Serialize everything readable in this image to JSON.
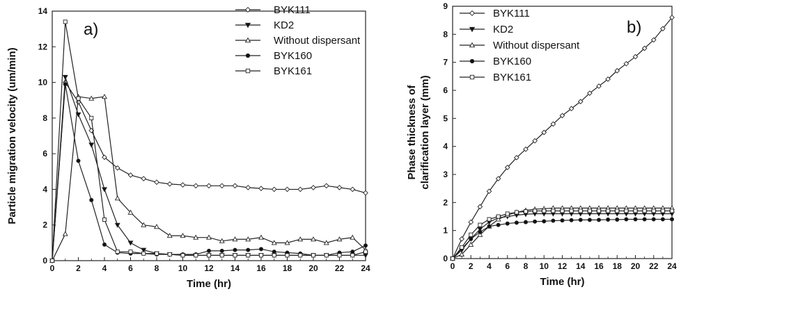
{
  "chart_data": [
    {
      "type": "line",
      "panel_label": "a)",
      "xlabel": "Time (hr)",
      "ylabel": "Particle migration velocity (um/min)",
      "xlim": [
        0,
        24
      ],
      "ylim": [
        0,
        14
      ],
      "xticks": [
        0,
        2,
        4,
        6,
        8,
        10,
        12,
        14,
        16,
        18,
        20,
        22,
        24
      ],
      "yticks": [
        0,
        2,
        4,
        6,
        8,
        10,
        12,
        14
      ],
      "legend_position": "top-right",
      "x": [
        0,
        1,
        2,
        3,
        4,
        5,
        6,
        7,
        8,
        9,
        10,
        11,
        12,
        13,
        14,
        15,
        16,
        17,
        18,
        19,
        20,
        21,
        22,
        23,
        24
      ],
      "series": [
        {
          "name": "BYK111",
          "marker": "diamond-open",
          "values": [
            0,
            10.0,
            8.9,
            7.3,
            5.8,
            5.2,
            4.8,
            4.6,
            4.4,
            4.3,
            4.25,
            4.2,
            4.2,
            4.2,
            4.2,
            4.1,
            4.05,
            4.0,
            4.0,
            4.0,
            4.1,
            4.2,
            4.1,
            4.0,
            3.8
          ]
        },
        {
          "name": "KD2",
          "marker": "triangle-down-filled",
          "values": [
            0,
            10.3,
            8.2,
            6.5,
            4.0,
            2.0,
            1.0,
            0.6,
            0.4,
            0.35,
            0.3,
            0.3,
            0.3,
            0.3,
            0.3,
            0.3,
            0.3,
            0.3,
            0.3,
            0.3,
            0.3,
            0.3,
            0.3,
            0.3,
            0.3
          ]
        },
        {
          "name": "Without dispersant",
          "marker": "triangle-up-open",
          "values": [
            0,
            1.5,
            9.2,
            9.1,
            9.2,
            3.5,
            2.7,
            2.0,
            1.9,
            1.4,
            1.4,
            1.3,
            1.3,
            1.1,
            1.2,
            1.2,
            1.3,
            1.0,
            1.0,
            1.2,
            1.2,
            1.0,
            1.2,
            1.3,
            0.6
          ]
        },
        {
          "name": "BYK160",
          "marker": "circle-filled",
          "values": [
            0,
            9.9,
            5.6,
            3.4,
            0.9,
            0.45,
            0.4,
            0.4,
            0.35,
            0.35,
            0.35,
            0.35,
            0.55,
            0.55,
            0.6,
            0.6,
            0.65,
            0.5,
            0.45,
            0.4,
            0.3,
            0.3,
            0.45,
            0.5,
            0.85
          ]
        },
        {
          "name": "BYK161",
          "marker": "square-open",
          "values": [
            0,
            13.4,
            9.1,
            8.0,
            2.3,
            0.5,
            0.5,
            0.4,
            0.4,
            0.35,
            0.3,
            0.3,
            0.3,
            0.3,
            0.3,
            0.3,
            0.3,
            0.3,
            0.3,
            0.3,
            0.3,
            0.3,
            0.3,
            0.3,
            0.5
          ]
        }
      ]
    },
    {
      "type": "line",
      "panel_label": "b)",
      "xlabel": "Time (hr)",
      "ylabel": "Phase thickness of clarification layer (mm)",
      "xlim": [
        0,
        24
      ],
      "ylim": [
        0,
        9
      ],
      "xticks": [
        0,
        2,
        4,
        6,
        8,
        10,
        12,
        14,
        16,
        18,
        20,
        22,
        24
      ],
      "yticks": [
        0,
        1,
        2,
        3,
        4,
        5,
        6,
        7,
        8,
        9
      ],
      "legend_position": "top-left",
      "x": [
        0,
        1,
        2,
        3,
        4,
        5,
        6,
        7,
        8,
        9,
        10,
        11,
        12,
        13,
        14,
        15,
        16,
        17,
        18,
        19,
        20,
        21,
        22,
        23,
        24
      ],
      "series": [
        {
          "name": "BYK111",
          "marker": "diamond-open",
          "values": [
            0,
            0.7,
            1.3,
            1.85,
            2.4,
            2.85,
            3.25,
            3.6,
            3.9,
            4.2,
            4.5,
            4.8,
            5.1,
            5.35,
            5.6,
            5.9,
            6.15,
            6.4,
            6.7,
            6.95,
            7.2,
            7.5,
            7.8,
            8.2,
            8.6
          ]
        },
        {
          "name": "KD2",
          "marker": "triangle-down-filled",
          "values": [
            0,
            0.3,
            0.7,
            1.05,
            1.3,
            1.45,
            1.5,
            1.55,
            1.58,
            1.6,
            1.6,
            1.6,
            1.6,
            1.6,
            1.6,
            1.6,
            1.6,
            1.6,
            1.6,
            1.6,
            1.6,
            1.6,
            1.6,
            1.6,
            1.6
          ]
        },
        {
          "name": "Without dispersant",
          "marker": "triangle-up-open",
          "values": [
            0,
            0.15,
            0.5,
            0.85,
            1.15,
            1.4,
            1.55,
            1.65,
            1.72,
            1.76,
            1.78,
            1.8,
            1.8,
            1.8,
            1.8,
            1.8,
            1.8,
            1.8,
            1.8,
            1.8,
            1.8,
            1.8,
            1.8,
            1.8,
            1.8
          ]
        },
        {
          "name": "BYK160",
          "marker": "circle-filled",
          "values": [
            0,
            0.35,
            0.7,
            0.95,
            1.15,
            1.2,
            1.25,
            1.28,
            1.3,
            1.32,
            1.33,
            1.35,
            1.36,
            1.37,
            1.38,
            1.38,
            1.38,
            1.39,
            1.39,
            1.4,
            1.4,
            1.4,
            1.4,
            1.4,
            1.4
          ]
        },
        {
          "name": "BYK161",
          "marker": "square-open",
          "values": [
            0,
            0.4,
            0.85,
            1.2,
            1.4,
            1.5,
            1.6,
            1.65,
            1.68,
            1.7,
            1.7,
            1.7,
            1.7,
            1.7,
            1.7,
            1.7,
            1.7,
            1.7,
            1.7,
            1.7,
            1.7,
            1.7,
            1.7,
            1.7,
            1.7
          ]
        }
      ]
    }
  ]
}
